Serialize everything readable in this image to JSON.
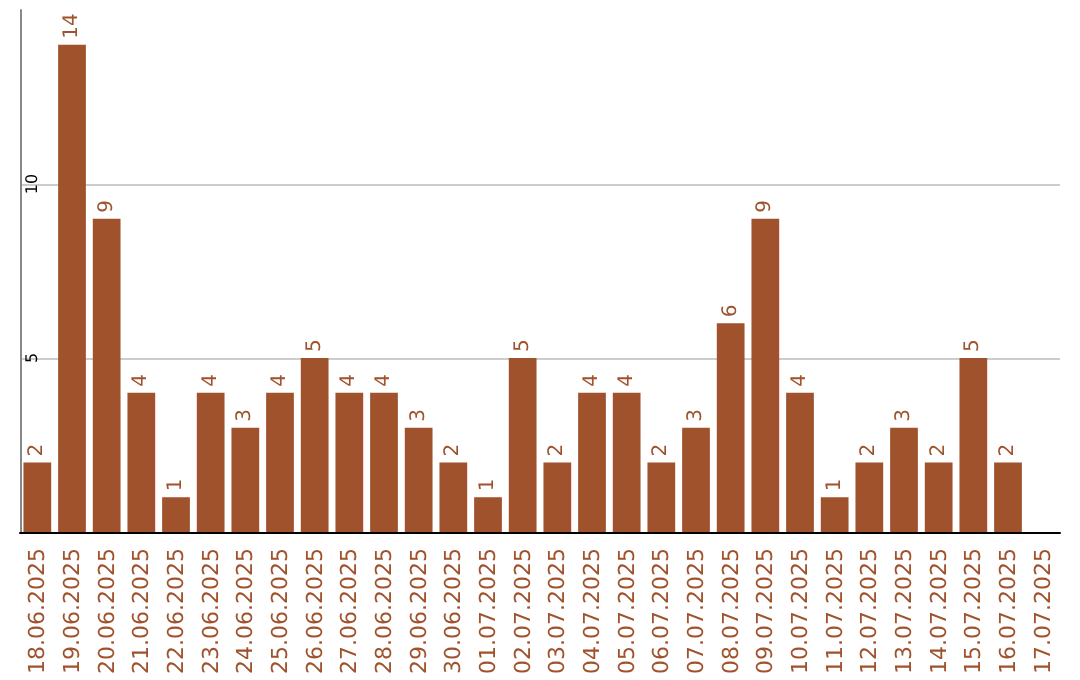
{
  "chart_data": {
    "type": "bar",
    "categories": [
      "18.06.2025",
      "19.06.2025",
      "20.06.2025",
      "21.06.2025",
      "22.06.2025",
      "23.06.2025",
      "24.06.2025",
      "25.06.2025",
      "26.06.2025",
      "27.06.2025",
      "28.06.2025",
      "29.06.2025",
      "30.06.2025",
      "01.07.2025",
      "02.07.2025",
      "03.07.2025",
      "04.07.2025",
      "05.07.2025",
      "06.07.2025",
      "07.07.2025",
      "08.07.2025",
      "09.07.2025",
      "10.07.2025",
      "11.07.2025",
      "12.07.2025",
      "13.07.2025",
      "14.07.2025",
      "15.07.2025",
      "16.07.2025",
      "17.07.2025"
    ],
    "values": [
      2,
      14,
      9,
      4,
      1,
      4,
      3,
      4,
      5,
      4,
      4,
      3,
      2,
      1,
      5,
      2,
      4,
      4,
      2,
      3,
      6,
      9,
      4,
      1,
      2,
      3,
      2,
      5,
      2,
      null
    ],
    "color": "#a0522d",
    "ylim": [
      0,
      15
    ],
    "yticks": [
      5,
      10
    ],
    "grid": "y",
    "data_labels": true
  }
}
